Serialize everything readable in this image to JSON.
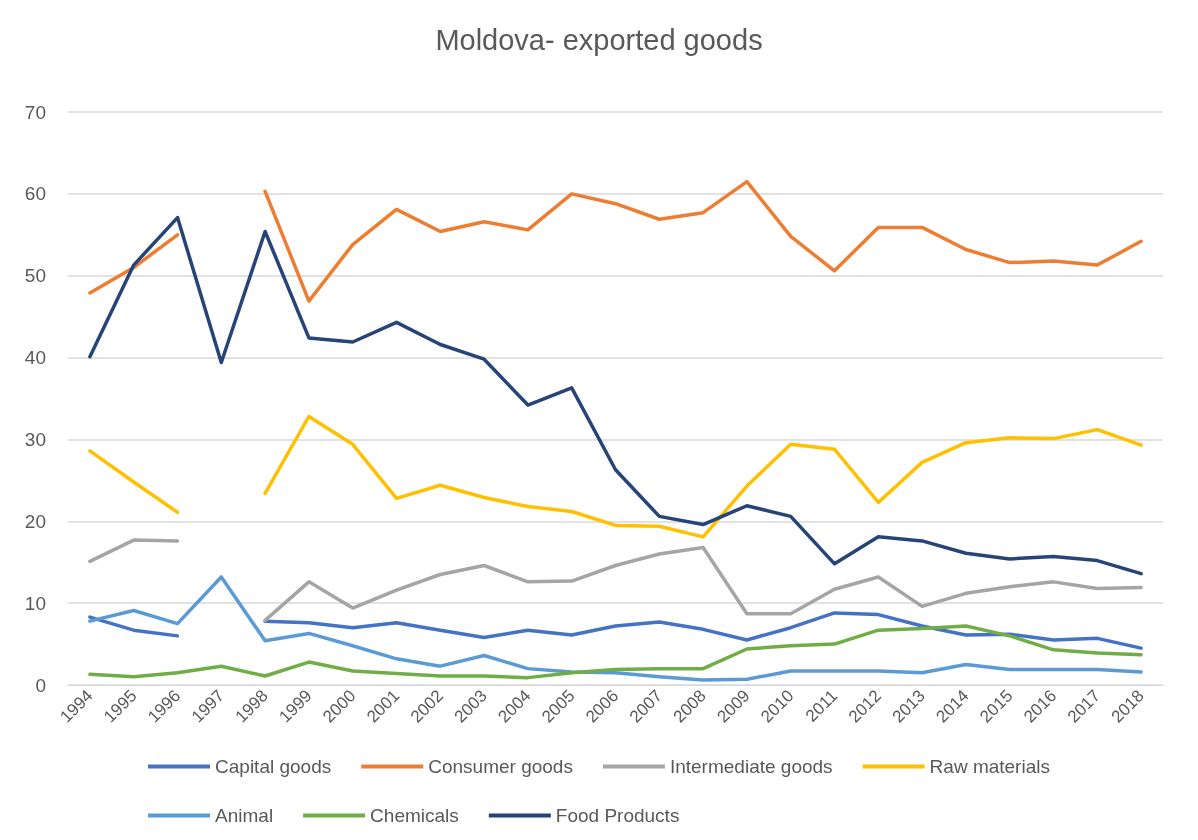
{
  "chart_data": {
    "type": "line",
    "title": "Moldova- exported goods",
    "categories": [
      "1994",
      "1995",
      "1996",
      "1997",
      "1998",
      "1999",
      "2000",
      "2001",
      "2002",
      "2003",
      "2004",
      "2005",
      "2006",
      "2007",
      "2008",
      "2009",
      "2010",
      "2011",
      "2012",
      "2013",
      "2014",
      "2015",
      "2016",
      "2017",
      "2018"
    ],
    "series": [
      {
        "name": "Capital goods",
        "color": "#4472c4",
        "values": [
          8.3,
          6.7,
          6.0,
          null,
          7.8,
          7.6,
          7.0,
          7.6,
          6.7,
          5.8,
          6.7,
          6.1,
          7.2,
          7.7,
          6.8,
          5.5,
          7.0,
          8.8,
          8.6,
          7.2,
          6.1,
          6.2,
          5.5,
          5.7,
          4.5
        ]
      },
      {
        "name": "Consumer goods",
        "color": "#ed7d31",
        "values": [
          47.9,
          51.0,
          55.0,
          null,
          60.3,
          46.9,
          53.8,
          58.1,
          55.4,
          56.6,
          55.6,
          60.0,
          58.8,
          56.9,
          57.7,
          61.5,
          54.8,
          50.6,
          55.9,
          55.9,
          53.2,
          51.6,
          51.8,
          51.3,
          54.2
        ]
      },
      {
        "name": "Intermediate goods",
        "color": "#a5a5a5",
        "values": [
          15.1,
          17.7,
          17.6,
          null,
          7.9,
          12.6,
          9.4,
          11.6,
          13.5,
          14.6,
          12.6,
          12.7,
          14.6,
          16.0,
          16.8,
          8.7,
          8.7,
          11.7,
          13.2,
          9.6,
          11.2,
          12.0,
          12.6,
          11.8,
          11.9
        ]
      },
      {
        "name": "Raw materials",
        "color": "#ffc000",
        "values": [
          28.6,
          24.8,
          21.1,
          null,
          23.4,
          32.8,
          29.4,
          22.8,
          24.4,
          22.9,
          21.8,
          21.2,
          19.5,
          19.4,
          18.1,
          24.3,
          29.4,
          28.8,
          22.3,
          27.2,
          29.6,
          30.2,
          30.1,
          31.2,
          29.3
        ]
      },
      {
        "name": "Animal",
        "color": "#5b9bd5",
        "values": [
          7.8,
          9.1,
          7.5,
          13.2,
          5.4,
          6.3,
          4.8,
          3.2,
          2.3,
          3.6,
          2.0,
          1.6,
          1.5,
          1.0,
          0.6,
          0.7,
          1.7,
          1.7,
          1.7,
          1.5,
          2.5,
          1.9,
          1.9,
          1.9,
          1.6
        ]
      },
      {
        "name": "Chemicals",
        "color": "#70ad47",
        "values": [
          1.3,
          1.0,
          1.5,
          2.3,
          1.1,
          2.8,
          1.7,
          1.4,
          1.1,
          1.1,
          0.9,
          1.5,
          1.9,
          2.0,
          2.0,
          4.4,
          4.8,
          5.0,
          6.7,
          6.9,
          7.2,
          6.0,
          4.3,
          3.9,
          3.7
        ]
      },
      {
        "name": "Food Products",
        "color": "#264478",
        "values": [
          40.1,
          51.3,
          57.1,
          39.4,
          55.4,
          42.4,
          41.9,
          44.3,
          41.6,
          39.8,
          34.2,
          36.3,
          26.3,
          20.6,
          19.6,
          21.9,
          20.6,
          14.8,
          18.1,
          17.6,
          16.1,
          15.4,
          15.7,
          15.2,
          13.6
        ]
      }
    ],
    "ylim": [
      0,
      70
    ],
    "yticks": [
      0,
      10,
      20,
      30,
      40,
      50,
      60,
      70
    ],
    "grid": "y",
    "legend": "bottom",
    "marker": "none",
    "line_style": "solid"
  }
}
